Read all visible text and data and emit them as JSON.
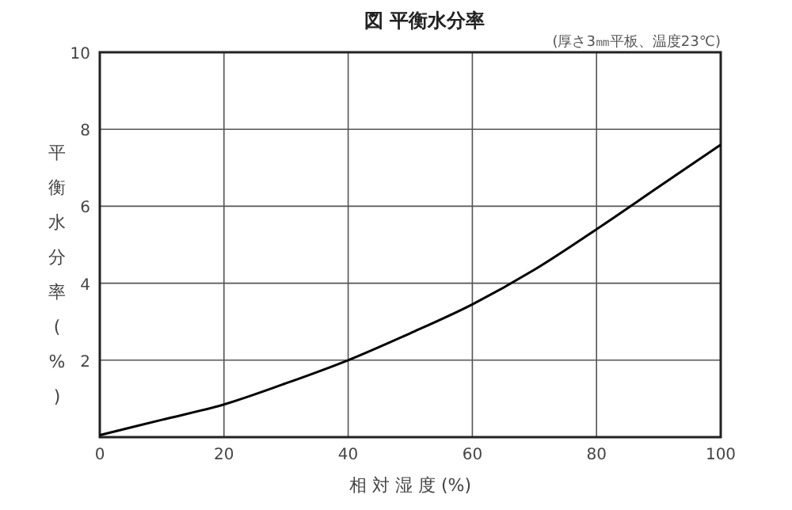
{
  "chart_data": {
    "type": "line",
    "title": "図 平衡水分率",
    "subtitle": "(厚さ3㎜平板、温度23℃)",
    "xlabel": "相 対 湿 度 (%)",
    "ylabel": "平衡水分率(%)",
    "x": [
      0,
      10,
      20,
      30,
      40,
      50,
      60,
      70,
      80,
      90,
      100
    ],
    "series": [
      {
        "color": "#000000",
        "values": [
          0.05,
          0.45,
          0.85,
          1.4,
          2.0,
          2.7,
          3.45,
          4.35,
          5.4,
          6.5,
          7.6
        ]
      }
    ],
    "xlim": [
      0,
      100
    ],
    "xticks": [
      0,
      20,
      40,
      60,
      80,
      100
    ],
    "ylim": [
      0,
      10
    ],
    "yticks": [
      {
        "value": 0,
        "label": null
      },
      2,
      4,
      6,
      8,
      10
    ],
    "grid": true,
    "marker": "none",
    "line_style": "solid"
  }
}
